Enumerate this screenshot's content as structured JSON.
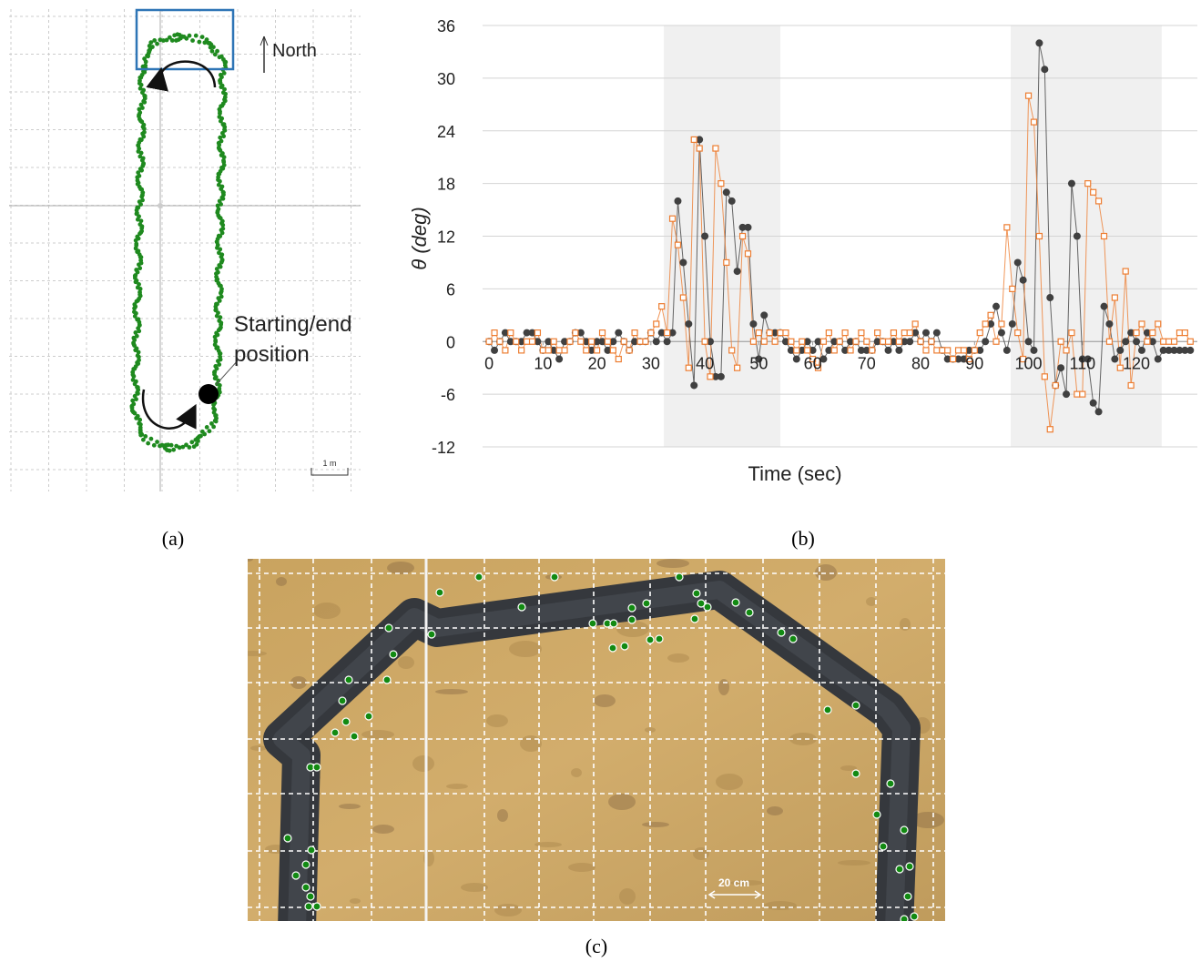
{
  "panel_a": {
    "north_label": "North",
    "start_label": [
      "Starting/end",
      "position"
    ],
    "scale_label": "1 m"
  },
  "panel_c": {
    "scale_label": "20 cm"
  },
  "captions": [
    "(a)",
    "(b)",
    "(c)"
  ],
  "chart_data": {
    "type": "scatter",
    "xlabel": "Time (sec)",
    "ylabel": "θ (deg)",
    "xlim": [
      -1.2,
      131.3
    ],
    "ylim": [
      -12,
      36
    ],
    "xticks": [
      0,
      10,
      20,
      30,
      40,
      50,
      60,
      70,
      80,
      90,
      100,
      110,
      120
    ],
    "yticks": [
      -12,
      -6,
      0,
      6,
      12,
      18,
      24,
      30,
      36
    ],
    "grid": true,
    "highlight_ranges": [
      [
        32.4,
        54
      ],
      [
        96.7,
        124.7
      ]
    ],
    "x": [
      0,
      1,
      2,
      3,
      4,
      5,
      6,
      7,
      8,
      9,
      10,
      11,
      12,
      13,
      14,
      15,
      16,
      17,
      18,
      19,
      20,
      21,
      22,
      23,
      24,
      25,
      26,
      27,
      28,
      29,
      30,
      31,
      32,
      33,
      34,
      35,
      36,
      37,
      38,
      39,
      40,
      41,
      42,
      43,
      44,
      45,
      46,
      47,
      48,
      49,
      50,
      51,
      52,
      53,
      54,
      55,
      56,
      57,
      58,
      59,
      60,
      61,
      62,
      63,
      64,
      65,
      66,
      67,
      68,
      69,
      70,
      71,
      72,
      73,
      74,
      75,
      76,
      77,
      78,
      79,
      80,
      81,
      82,
      83,
      84,
      85,
      86,
      87,
      88,
      89,
      90,
      91,
      92,
      93,
      94,
      95,
      96,
      97,
      98,
      99,
      100,
      101,
      102,
      103,
      104,
      105,
      106,
      107,
      108,
      109,
      110,
      111,
      112,
      113,
      114,
      115,
      116,
      117,
      118,
      119,
      120,
      121,
      122,
      123,
      124,
      125,
      126,
      127,
      128,
      129,
      130
    ],
    "series": [
      {
        "color": "#404040",
        "marker": "circle",
        "values": [
          0,
          -1,
          0,
          1,
          0,
          0,
          0,
          1,
          1,
          0,
          -1,
          0,
          -1,
          -2,
          0,
          0,
          1,
          1,
          0,
          -1,
          0,
          0,
          -1,
          0,
          1,
          0,
          -1,
          0,
          0,
          0,
          1,
          0,
          1,
          0,
          1,
          16,
          9,
          2,
          -5,
          23,
          12,
          0,
          -4,
          -4,
          17,
          16,
          8,
          13,
          13,
          2,
          -2,
          3,
          1,
          1,
          1,
          0,
          -1,
          -2,
          -1,
          0,
          -1,
          0,
          -2,
          -1,
          0,
          0,
          -1,
          0,
          0,
          -1,
          -1,
          -1,
          0,
          0,
          -1,
          0,
          -1,
          0,
          0,
          1,
          0,
          1,
          0,
          1,
          -1,
          -2,
          -2,
          -2,
          -2,
          -1,
          -1,
          -1,
          0,
          2,
          4,
          1,
          -1,
          2,
          9,
          7,
          0,
          -1,
          34,
          31,
          5,
          -5,
          -3,
          -6,
          18,
          12,
          -2,
          -2,
          -7,
          -8,
          4,
          2,
          -2,
          -1,
          0,
          1,
          0,
          -1,
          1,
          0,
          -2,
          -1,
          -1,
          -1,
          -1,
          -1,
          -1
        ]
      },
      {
        "color": "#ed7d31",
        "marker": "square",
        "values": [
          0,
          1,
          0,
          -1,
          1,
          0,
          -1,
          0,
          0,
          1,
          -1,
          -1,
          0,
          -1,
          -1,
          0,
          1,
          0,
          -1,
          0,
          -1,
          1,
          0,
          -1,
          -2,
          0,
          -1,
          1,
          0,
          0,
          1,
          2,
          4,
          1,
          14,
          11,
          5,
          -3,
          23,
          22,
          0,
          -4,
          22,
          18,
          9,
          -1,
          -3,
          12,
          10,
          0,
          1,
          0,
          1,
          0,
          1,
          1,
          0,
          -1,
          0,
          -1,
          -2,
          -3,
          0,
          1,
          -1,
          0,
          1,
          -1,
          0,
          1,
          0,
          -1,
          1,
          0,
          0,
          1,
          0,
          1,
          1,
          2,
          0,
          -1,
          0,
          -1,
          -1,
          -1,
          -2,
          -1,
          -1,
          -2,
          -1,
          1,
          2,
          3,
          0,
          2,
          13,
          6,
          1,
          -2,
          28,
          25,
          12,
          -4,
          -10,
          -5,
          0,
          -1,
          1,
          -6,
          -6,
          18,
          17,
          16,
          12,
          0,
          5,
          -3,
          8,
          -5,
          1,
          2,
          0,
          1,
          2,
          0,
          0,
          0,
          1,
          1,
          0
        ]
      }
    ]
  }
}
